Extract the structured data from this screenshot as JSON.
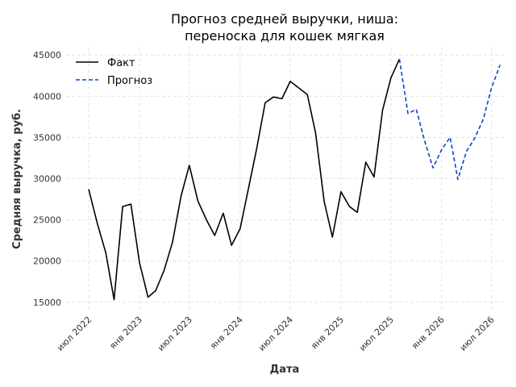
{
  "chart_data": {
    "type": "line",
    "title_lines": [
      "Прогноз средней выручки, ниша:",
      "переноска для кошек мягкая"
    ],
    "xlabel": "Дата",
    "ylabel": "Средняя выручка, руб.",
    "ylim": [
      14000,
      46000
    ],
    "yticks": [
      15000,
      20000,
      25000,
      30000,
      35000,
      40000,
      45000
    ],
    "xlim": [
      "2022-04-10",
      "2026-08-15"
    ],
    "xticks": [
      {
        "date": "2022-07-01",
        "label": "июл 2022"
      },
      {
        "date": "2023-01-01",
        "label": "янв 2023"
      },
      {
        "date": "2023-07-01",
        "label": "июл 2023"
      },
      {
        "date": "2024-01-01",
        "label": "янв 2024"
      },
      {
        "date": "2024-07-01",
        "label": "июл 2024"
      },
      {
        "date": "2025-01-01",
        "label": "янв 2025"
      },
      {
        "date": "2025-07-01",
        "label": "июл 2025"
      },
      {
        "date": "2026-01-01",
        "label": "янв 2026"
      },
      {
        "date": "2026-07-01",
        "label": "июл 2026"
      }
    ],
    "grid": true,
    "legend_position": "top-left",
    "series": [
      {
        "name": "Факт",
        "color": "#000000",
        "style": "solid",
        "points": [
          [
            "2022-07-01",
            28700
          ],
          [
            "2022-08-01",
            24600
          ],
          [
            "2022-09-01",
            21000
          ],
          [
            "2022-10-01",
            15300
          ],
          [
            "2022-11-01",
            26600
          ],
          [
            "2022-12-01",
            26900
          ],
          [
            "2023-01-01",
            19800
          ],
          [
            "2023-02-01",
            15600
          ],
          [
            "2023-03-01",
            16400
          ],
          [
            "2023-04-01",
            18900
          ],
          [
            "2023-05-01",
            22300
          ],
          [
            "2023-06-01",
            27900
          ],
          [
            "2023-07-01",
            31600
          ],
          [
            "2023-08-01",
            27300
          ],
          [
            "2023-09-01",
            25000
          ],
          [
            "2023-10-01",
            23100
          ],
          [
            "2023-11-01",
            25800
          ],
          [
            "2023-12-01",
            21900
          ],
          [
            "2024-01-01",
            23900
          ],
          [
            "2024-02-01",
            28900
          ],
          [
            "2024-03-01",
            33600
          ],
          [
            "2024-04-01",
            39200
          ],
          [
            "2024-05-01",
            39900
          ],
          [
            "2024-06-01",
            39700
          ],
          [
            "2024-07-01",
            41800
          ],
          [
            "2024-08-01",
            41000
          ],
          [
            "2024-09-01",
            40200
          ],
          [
            "2024-10-01",
            35500
          ],
          [
            "2024-11-01",
            27200
          ],
          [
            "2024-12-01",
            22900
          ],
          [
            "2025-01-01",
            28400
          ],
          [
            "2025-02-01",
            26600
          ],
          [
            "2025-03-01",
            25900
          ],
          [
            "2025-04-01",
            32000
          ],
          [
            "2025-05-01",
            30200
          ],
          [
            "2025-06-01",
            38300
          ],
          [
            "2025-07-01",
            42200
          ],
          [
            "2025-08-01",
            44500
          ]
        ]
      },
      {
        "name": "Прогноз",
        "color": "#0a44c8",
        "style": "dashed",
        "points": [
          [
            "2025-08-01",
            44500
          ],
          [
            "2025-09-01",
            37900
          ],
          [
            "2025-10-01",
            38400
          ],
          [
            "2025-11-01",
            34500
          ],
          [
            "2025-12-01",
            31300
          ],
          [
            "2026-01-01",
            33500
          ],
          [
            "2026-02-01",
            35000
          ],
          [
            "2026-03-01",
            29900
          ],
          [
            "2026-04-01",
            33300
          ],
          [
            "2026-05-01",
            34900
          ],
          [
            "2026-06-01",
            37200
          ],
          [
            "2026-07-01",
            41000
          ],
          [
            "2026-08-01",
            43800
          ]
        ]
      }
    ]
  }
}
